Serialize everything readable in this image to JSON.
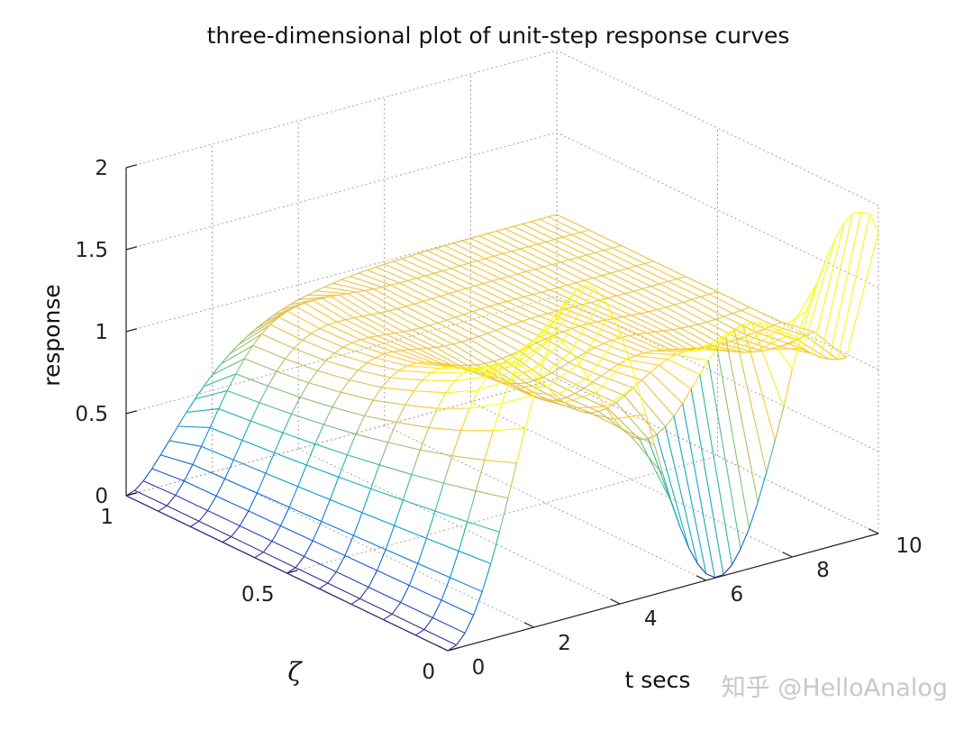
{
  "chart_data": {
    "type": "surface",
    "title": "three-dimensional plot of unit-step response curves",
    "xlabel": "t secs",
    "ylabel": "ζ",
    "zlabel": "response",
    "x_ticks": [
      "0",
      "2",
      "4",
      "6",
      "8",
      "10"
    ],
    "y_ticks": [
      "0",
      "0.5",
      "1"
    ],
    "z_ticks": [
      "0",
      "0.5",
      "1",
      "1.5",
      "2"
    ],
    "xlim": [
      0,
      10
    ],
    "ylim": [
      0,
      1
    ],
    "zlim": [
      0,
      2
    ],
    "grid": true,
    "colormap": "parula",
    "colors": [
      "#352a87",
      "#0f5cdd",
      "#1481d6",
      "#06a4ca",
      "#2eb7a4",
      "#87bf77",
      "#d1bb59",
      "#fec832",
      "#f9fb0e"
    ],
    "t": [
      0,
      0.2,
      0.4,
      0.6,
      0.8,
      1.0,
      1.2,
      1.4,
      1.6,
      1.8,
      2.0,
      2.2,
      2.4,
      2.6,
      2.8,
      3.0,
      3.2,
      3.4,
      3.6,
      3.8,
      4.0,
      4.2,
      4.4,
      4.6,
      4.8,
      5.0,
      5.2,
      5.4,
      5.6,
      5.8,
      6.0,
      6.2,
      6.4,
      6.6,
      6.8,
      7.0,
      7.2,
      7.4,
      7.6,
      7.8,
      8.0,
      8.2,
      8.4,
      8.6,
      8.8,
      9.0,
      9.2,
      9.4,
      9.6,
      9.8,
      10.0
    ],
    "zeta": [
      0,
      0.1,
      0.2,
      0.3,
      0.4,
      0.5,
      0.6,
      0.7,
      0.8,
      0.9,
      1.0
    ],
    "response": [
      [
        0.0,
        0.0199,
        0.0789,
        0.1747,
        0.3033,
        0.4597,
        0.6376,
        0.83,
        1.0292,
        1.2272,
        1.4161,
        1.5885,
        1.7374,
        1.8569,
        1.9422,
        1.99,
        1.9983,
        1.9668,
        1.8968,
        1.791,
        1.6536,
        1.4903,
        1.3073,
        1.1122,
        0.9127,
        0.7163,
        0.5315,
        0.3652,
        0.2248,
        0.116,
        0.0398,
        0.0034,
        0.0072,
        0.0515,
        0.1349,
        0.2461,
        0.3915,
        0.5577,
        0.7387,
        0.9274,
        1.1455,
        1.3111,
        1.4835,
        1.6387,
        1.7659,
        1.8699,
        1.9466,
        1.9935,
        1.9885,
        1.9615,
        1.8391
      ],
      [
        0.0,
        0.0198,
        0.0777,
        0.1707,
        0.2941,
        0.4416,
        0.606,
        0.7791,
        0.9528,
        1.1188,
        1.2696,
        1.3986,
        1.5007,
        1.5722,
        1.6114,
        1.6185,
        1.5952,
        1.545,
        1.4723,
        1.3829,
        1.2832,
        1.18,
        1.0801,
        0.9895,
        0.9139,
        0.8573,
        0.8228,
        0.8116,
        0.8234,
        0.8562,
        0.9067,
        0.9706,
        1.0426,
        1.1171,
        1.1883,
        1.2509,
        1.3007,
        1.3346,
        1.351,
        1.3497,
        1.332,
        1.3003,
        1.2578,
        1.2087,
        1.1568,
        1.1061,
        1.0605,
        1.023,
        0.9961,
        0.9812,
        0.9787
      ],
      [
        0.0,
        0.0197,
        0.0766,
        0.1668,
        0.2851,
        0.4244,
        0.5767,
        0.7331,
        0.8851,
        1.0247,
        1.1455,
        1.2424,
        1.3121,
        1.3534,
        1.367,
        1.3551,
        1.3218,
        1.272,
        1.2116,
        1.1465,
        1.0823,
        1.0239,
        0.9755,
        0.9398,
        0.9185,
        0.912,
        0.9193,
        0.9382,
        0.9659,
        0.9988,
        1.0333,
        1.0661,
        1.0943,
        1.1158,
        1.1293,
        1.1342,
        1.1309,
        1.1205,
        1.1048,
        1.0858,
        1.0657,
        1.0465,
        1.03,
        1.0174,
        1.0095,
        1.0066,
        1.0083,
        1.0139,
        1.0222,
        1.0319,
        1.0415
      ],
      [
        0.0,
        0.0196,
        0.0754,
        0.1628,
        0.2763,
        0.4079,
        0.549,
        0.691,
        0.826,
        0.9474,
        1.0505,
        1.1319,
        1.1898,
        1.2238,
        1.2348,
        1.225,
        1.198,
        1.1581,
        1.1104,
        1.0599,
        1.0114,
        0.969,
        0.9356,
        0.9132,
        0.9025,
        0.903,
        0.9132,
        0.9309,
        0.9532,
        0.9772,
        1.0002,
        1.0199,
        1.0347,
        1.0436,
        1.0464,
        1.0435,
        1.0359,
        1.0252,
        1.0128,
        1.0004,
        0.9893,
        0.9805,
        0.9747,
        0.9721,
        0.9726,
        0.9757,
        0.9808,
        0.9871,
        0.9937,
        0.9998,
        1.0047
      ],
      [
        0.0,
        0.0195,
        0.0743,
        0.1589,
        0.2676,
        0.3922,
        0.5241,
        0.6548,
        0.7775,
        0.8861,
        0.9773,
        1.0488,
        1.0998,
        1.1308,
        1.1432,
        1.1395,
        1.1225,
        1.0957,
        1.0629,
        1.0277,
        0.9935,
        0.9631,
        0.9386,
        0.9215,
        0.9124,
        0.9114,
        0.9176,
        0.9297,
        0.9457,
        0.9639,
        0.9822,
        0.9989,
        1.0126,
        1.0226,
        1.0284,
        1.0301,
        1.0281,
        1.0233,
        1.0164,
        1.0086,
        1.0007,
        0.9937,
        0.9881,
        0.9843,
        0.9826,
        0.9829,
        0.9849,
        0.9883,
        0.9925,
        0.997,
        1.0013
      ],
      [
        0.0,
        0.0194,
        0.0732,
        0.1551,
        0.259,
        0.377,
        0.5005,
        0.6213,
        0.7329,
        0.8308,
        0.9119,
        0.9753,
        1.0209,
        1.0498,
        1.0638,
        1.0652,
        1.0566,
        1.0408,
        1.0211,
        1.0005,
        0.9814,
        0.9659,
        0.9552,
        0.9497,
        0.949,
        0.9525,
        0.9593,
        0.9684,
        0.9788,
        0.9894,
        0.9995,
        1.0083,
        1.0151,
        1.0196,
        1.0215,
        1.0211,
        1.0188,
        1.0151,
        1.0105,
        1.0056,
        1.001,
        0.9972,
        0.9944,
        0.9928,
        0.9924,
        0.9931,
        0.9946,
        0.9966,
        0.9988,
        1.0009,
        1.0025
      ],
      [
        0.0,
        0.0193,
        0.072,
        0.1513,
        0.2506,
        0.3625,
        0.479,
        0.5929,
        0.6977,
        0.7895,
        0.8658,
        0.9262,
        0.9712,
        1.0019,
        1.0199,
        1.0275,
        1.0269,
        1.0207,
        1.0113,
        1.0008,
        0.9908,
        0.9824,
        0.9764,
        0.9731,
        0.9724,
        0.9739,
        0.9772,
        0.9815,
        0.9862,
        0.9908,
        0.995,
        0.9985,
        1.0011,
        1.0027,
        1.0033,
        1.0031,
        1.0023,
        1.0011,
        0.9998,
        0.9985,
        0.9974,
        0.9967,
        0.9963,
        0.9962,
        0.9964,
        0.9968,
        0.9974,
        0.9981,
        0.9987,
        0.9993,
        0.9997
      ],
      [
        0.0,
        0.0192,
        0.0709,
        0.1477,
        0.2425,
        0.3489,
        0.4593,
        0.5673,
        0.667,
        0.755,
        0.829,
        0.8886,
        0.9342,
        0.9671,
        0.9889,
        1.0013,
        1.0061,
        1.0053,
        1.0009,
        0.995,
        0.9888,
        0.9835,
        0.9798,
        0.9779,
        0.9779,
        0.9794,
        0.982,
        0.9851,
        0.9883,
        0.9912,
        0.9936,
        0.9952,
        0.9962,
        0.9966,
        0.9966,
        0.9963,
        0.9959,
        0.9955,
        0.9952,
        0.9951,
        0.9952,
        0.9954,
        0.9958,
        0.9962,
        0.9967,
        0.9972,
        0.9976,
        0.998,
        0.9983,
        0.9986,
        0.9988
      ],
      [
        0.0,
        0.0191,
        0.0698,
        0.1442,
        0.2347,
        0.3358,
        0.441,
        0.5446,
        0.6418,
        0.7291,
        0.8042,
        0.8661,
        0.915,
        0.9516,
        0.9773,
        0.9938,
        1.0027,
        1.0058,
        1.005,
        1.0018,
        0.9975,
        0.9932,
        0.9896,
        0.9871,
        0.9858,
        0.9856,
        0.9863,
        0.9876,
        0.9893,
        0.9911,
        0.9928,
        0.9943,
        0.9955,
        0.9964,
        0.997,
        0.9974,
        0.9976,
        0.9978,
        0.9979,
        0.998,
        0.9981,
        0.9982,
        0.9984,
        0.9985,
        0.9987,
        0.9989,
        0.999,
        0.9992,
        0.9993,
        0.9994,
        0.9995
      ],
      [
        0.0,
        0.019,
        0.0687,
        0.1408,
        0.2272,
        0.3234,
        0.424,
        0.5243,
        0.6203,
        0.7086,
        0.7869,
        0.8537,
        0.9084,
        0.9512,
        0.9829,
        1.0049,
        1.0187,
        1.0259,
        1.0281,
        1.0266,
        1.0228,
        1.0176,
        1.0119,
        1.0064,
        1.0015,
        0.9975,
        0.9946,
        0.9926,
        0.9915,
        0.9911,
        0.9913,
        0.9919,
        0.9927,
        0.9936,
        0.9946,
        0.9955,
        0.9963,
        0.997,
        0.9976,
        0.9981,
        0.9985,
        0.9988,
        0.999,
        0.9992,
        0.9994,
        0.9995,
        0.9996,
        0.9997,
        0.9998,
        0.9998,
        0.9999
      ],
      [
        0.0,
        0.0175,
        0.0616,
        0.1219,
        0.1912,
        0.2642,
        0.3374,
        0.4082,
        0.4751,
        0.5372,
        0.594,
        0.6454,
        0.6916,
        0.7326,
        0.7689,
        0.8009,
        0.8288,
        0.8532,
        0.8743,
        0.8926,
        0.9084,
        0.9219,
        0.9336,
        0.9435,
        0.952,
        0.9596,
        0.9658,
        0.9712,
        0.9757,
        0.9796,
        0.9826,
        0.9855,
        0.988,
        0.99,
        0.9917,
        0.9927,
        0.9944,
        0.9954,
        0.9962,
        0.9969,
        0.997,
        0.9979,
        0.9982,
        0.9985,
        0.9988,
        0.999,
        0.9992,
        0.9993,
        0.9994,
        0.9995,
        0.9995
      ]
    ]
  },
  "watermark": "知乎 @HelloAnalog"
}
